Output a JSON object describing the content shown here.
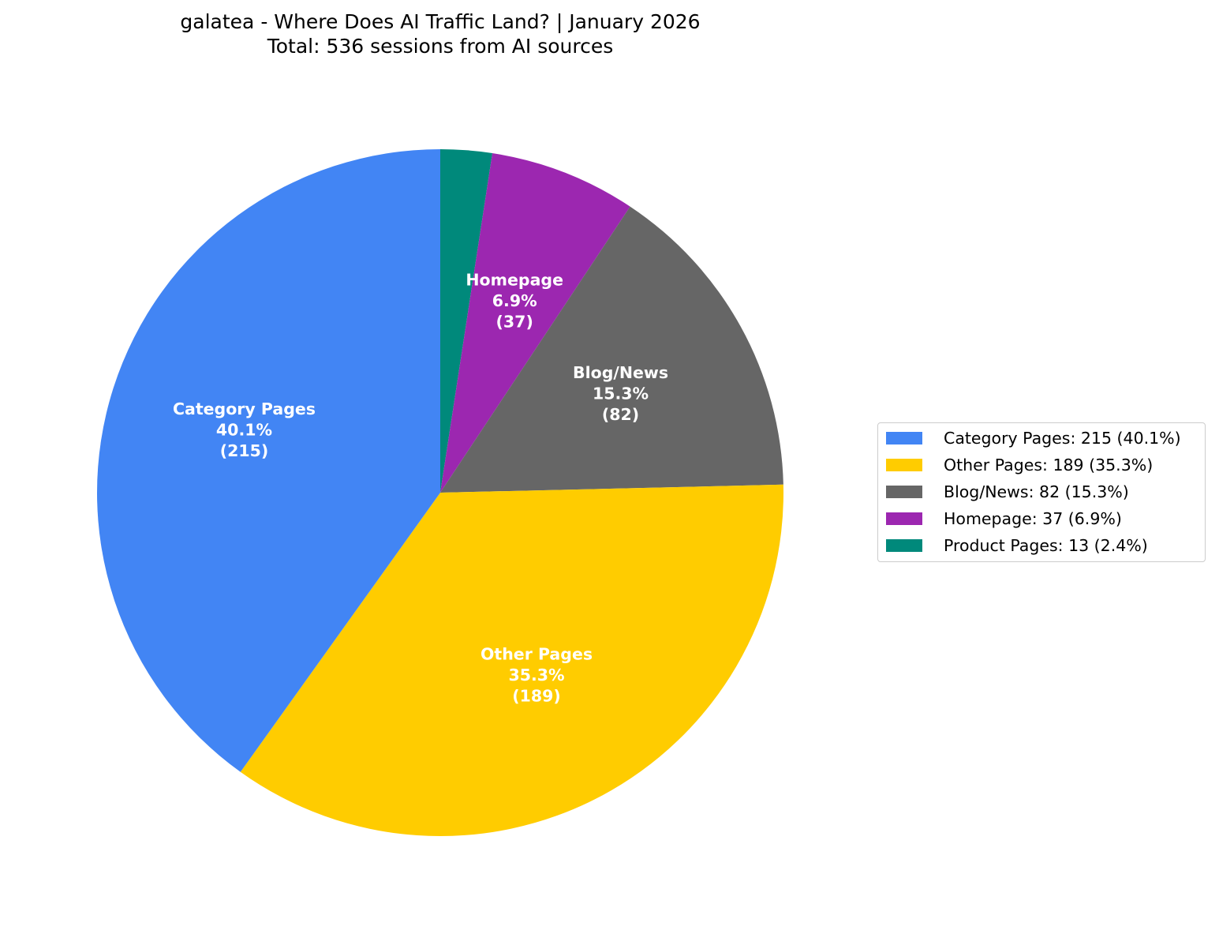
{
  "title": {
    "line1": "galatea - Where Does AI Traffic Land? | January 2026",
    "line2": "Total: 536 sessions from AI sources"
  },
  "legend": {
    "items": [
      {
        "label": "Category Pages: 215 (40.1%)",
        "color": "#4285f4"
      },
      {
        "label": "Other Pages: 189 (35.3%)",
        "color": "#ffcc00"
      },
      {
        "label": "Blog/News: 82 (15.3%)",
        "color": "#666666"
      },
      {
        "label": "Homepage: 37 (6.9%)",
        "color": "#9c27b0"
      },
      {
        "label": "Product Pages: 13 (2.4%)",
        "color": "#00897b"
      }
    ]
  },
  "chart_data": {
    "type": "pie",
    "title": "galatea - Where Does AI Traffic Land? | January 2026",
    "subtitle": "Total: 536 sessions from AI sources",
    "total": 536,
    "start_angle_deg": 90,
    "direction": "clockwise",
    "legend_position": "right",
    "slices": [
      {
        "name": "Product Pages",
        "value": 13,
        "percent": "2.4%",
        "count_label": "(13)",
        "color": "#00897b",
        "show_label": false
      },
      {
        "name": "Homepage",
        "value": 37,
        "percent": "6.9%",
        "count_label": "(37)",
        "color": "#9c27b0",
        "show_label": true
      },
      {
        "name": "Blog/News",
        "value": 82,
        "percent": "15.3%",
        "count_label": "(82)",
        "color": "#666666",
        "show_label": true
      },
      {
        "name": "Other Pages",
        "value": 189,
        "percent": "35.3%",
        "count_label": "(189)",
        "color": "#ffcc00",
        "show_label": true
      },
      {
        "name": "Category Pages",
        "value": 215,
        "percent": "40.1%",
        "count_label": "(215)",
        "color": "#4285f4",
        "show_label": true
      }
    ]
  }
}
